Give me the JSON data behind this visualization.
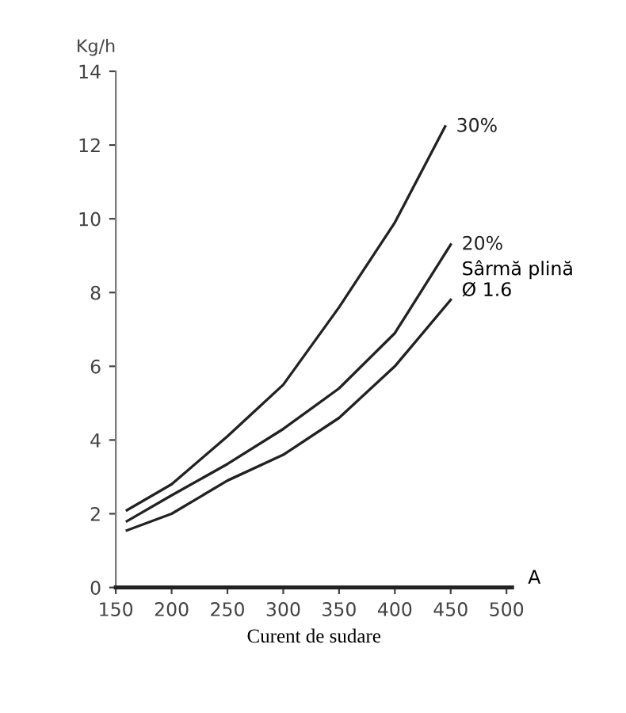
{
  "chart_data": {
    "type": "line",
    "ylabel": "Kg/h",
    "xlabel": "Curent de sudare",
    "xlim": [
      150,
      505
    ],
    "ylim": [
      0,
      14
    ],
    "xticks": [
      150,
      200,
      250,
      300,
      350,
      400,
      450,
      500
    ],
    "yticks": [
      0,
      2,
      4,
      6,
      8,
      10,
      12,
      14
    ],
    "grid": false,
    "legend": false,
    "marker": "none",
    "line_style": "solid",
    "series": [
      {
        "name": "30%",
        "color": "#222222",
        "x": [
          160,
          200,
          250,
          300,
          350,
          400,
          445
        ],
        "values": [
          2.1,
          2.8,
          4.1,
          5.5,
          7.6,
          9.9,
          12.5
        ]
      },
      {
        "name": "20%",
        "color": "#222222",
        "x": [
          160,
          200,
          250,
          300,
          350,
          400,
          450
        ],
        "values": [
          1.8,
          2.5,
          3.35,
          4.3,
          5.4,
          6.9,
          9.3
        ]
      },
      {
        "color": "#222222",
        "x": [
          160,
          200,
          250,
          300,
          350,
          400,
          450
        ],
        "values": [
          1.55,
          2.0,
          2.9,
          3.6,
          4.6,
          6.0,
          7.8
        ]
      }
    ],
    "annotations": [
      "Sârmă plină\nØ 1.6",
      "A"
    ]
  }
}
